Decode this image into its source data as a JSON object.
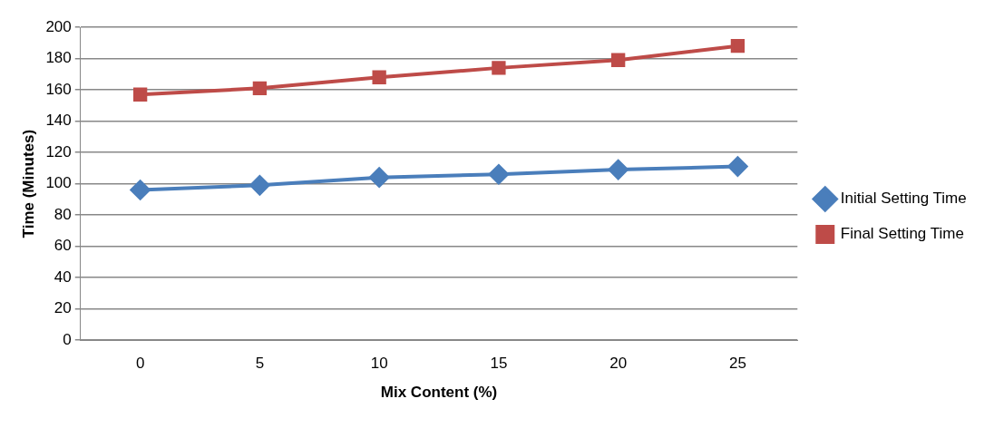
{
  "chart_data": {
    "type": "line",
    "xlabel": "Mix Content (%)",
    "ylabel": "Time (Minutes)",
    "categories": [
      "0",
      "5",
      "10",
      "15",
      "20",
      "25"
    ],
    "series": [
      {
        "name": "Initial Setting Time",
        "color": "#4a7ebb",
        "marker": "diamond",
        "values": [
          96,
          99,
          104,
          106,
          109,
          111
        ]
      },
      {
        "name": "Final Setting Time",
        "color": "#be4b48",
        "marker": "square",
        "values": [
          157,
          161,
          168,
          174,
          179,
          188
        ]
      }
    ],
    "ylim": [
      0,
      200
    ],
    "yticks": [
      0,
      20,
      40,
      60,
      80,
      100,
      120,
      140,
      160,
      180,
      200
    ],
    "grid": "y",
    "legend": "right"
  }
}
